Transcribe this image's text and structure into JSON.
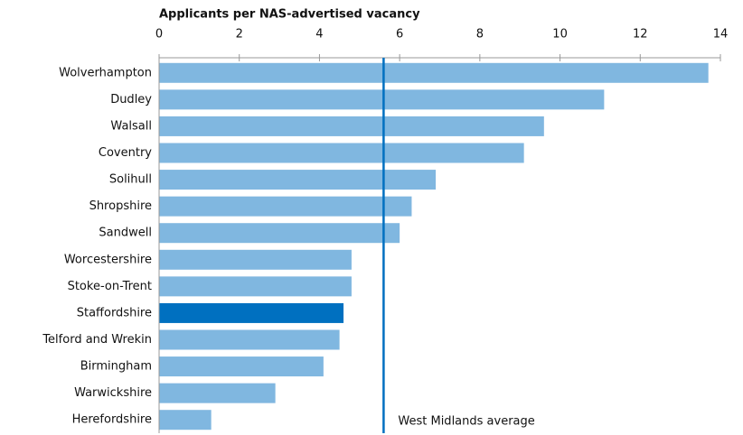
{
  "chart_data": {
    "type": "bar",
    "orientation": "horizontal",
    "x_label": "Applicants per NAS-advertised vacancy",
    "categories": [
      "Wolverhampton",
      "Dudley",
      "Walsall",
      "Coventry",
      "Solihull",
      "Shropshire",
      "Sandwell",
      "Worcestershire",
      "Stoke-on-Trent",
      "Staffordshire",
      "Telford and Wrekin",
      "Birmingham",
      "Warwickshire",
      "Herefordshire"
    ],
    "values": [
      13.7,
      11.1,
      9.6,
      9.1,
      6.9,
      6.3,
      6.0,
      4.8,
      4.8,
      4.6,
      4.5,
      4.1,
      2.9,
      1.3
    ],
    "colors": [
      "#80b7e0",
      "#80b7e0",
      "#80b7e0",
      "#80b7e0",
      "#80b7e0",
      "#80b7e0",
      "#80b7e0",
      "#80b7e0",
      "#80b7e0",
      "#0070c0",
      "#80b7e0",
      "#80b7e0",
      "#80b7e0",
      "#80b7e0"
    ],
    "xlim": [
      0,
      14
    ],
    "xticks": [
      0,
      2,
      4,
      6,
      8,
      10,
      12,
      14
    ],
    "reference_line": {
      "value": 5.6,
      "label": "West Midlands average",
      "color": "#0070c0"
    }
  }
}
